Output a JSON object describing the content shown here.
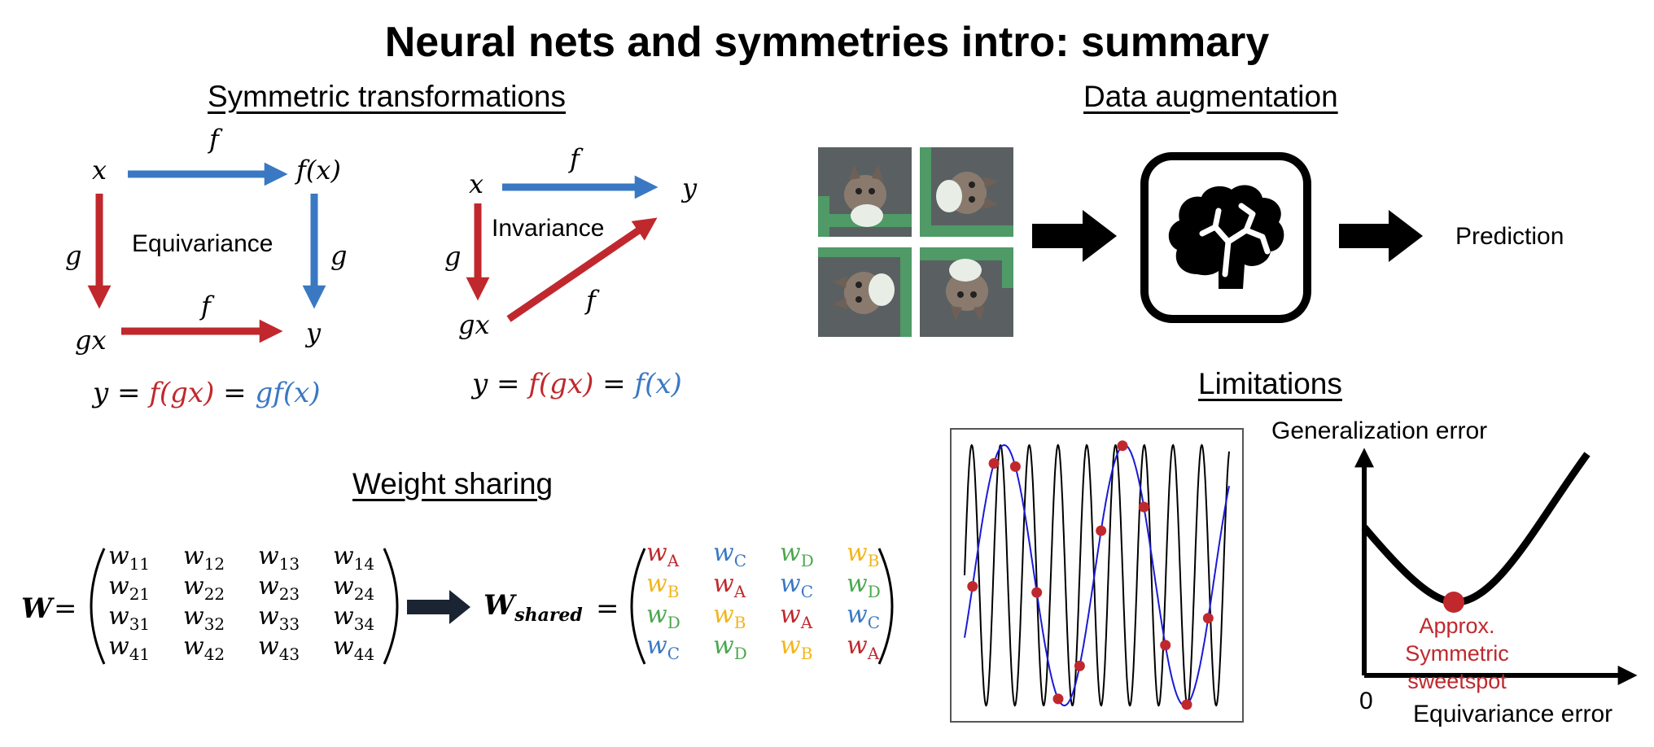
{
  "title": "Neural nets and symmetries intro: summary",
  "colors": {
    "red": "#c0282d",
    "blue": "#3a78c3",
    "yellow": "#f2b61b",
    "green": "#4aa84e",
    "black": "#000000",
    "dot": "#c0282d",
    "sine_fast": "#000000",
    "sine_slow": "#1a1ad6"
  },
  "symmetric": {
    "heading": "Symmetric transformations",
    "equivariance": {
      "x": "x",
      "fx": "f(x)",
      "gx": "gx",
      "y": "y",
      "f_top": "f",
      "f_bottom": "f",
      "g_left": "g",
      "g_right": "g",
      "label": "Equivariance",
      "eq": {
        "lhs": "y = ",
        "mid": "f(gx)",
        "eq2": " = ",
        "rhs": "gf(x)"
      }
    },
    "invariance": {
      "x": "x",
      "y": "y",
      "gx": "gx",
      "f_top": "f",
      "f_diag": "f",
      "g_left": "g",
      "label": "Invariance",
      "eq": {
        "lhs": "y = ",
        "mid": "f(gx)",
        "eq2": " = ",
        "rhs": "f(x)"
      }
    }
  },
  "augmentation": {
    "heading": "Data augmentation",
    "prediction": "Prediction",
    "brain_icon": "brain-icon",
    "image_subject": "kitten"
  },
  "weight_sharing": {
    "heading": "Weight sharing",
    "W_label": "W",
    "W_shared_label": "W",
    "W_shared_sub": "shared",
    "equals": "=",
    "W": [
      [
        [
          "w",
          "11"
        ],
        [
          "w",
          "12"
        ],
        [
          "w",
          "13"
        ],
        [
          "w",
          "14"
        ]
      ],
      [
        [
          "w",
          "21"
        ],
        [
          "w",
          "22"
        ],
        [
          "w",
          "23"
        ],
        [
          "w",
          "24"
        ]
      ],
      [
        [
          "w",
          "31"
        ],
        [
          "w",
          "32"
        ],
        [
          "w",
          "33"
        ],
        [
          "w",
          "34"
        ]
      ],
      [
        [
          "w",
          "41"
        ],
        [
          "w",
          "42"
        ],
        [
          "w",
          "43"
        ],
        [
          "w",
          "44"
        ]
      ]
    ],
    "W_shared": [
      [
        [
          "w",
          "A",
          "red"
        ],
        [
          "w",
          "C",
          "blue"
        ],
        [
          "w",
          "D",
          "green"
        ],
        [
          "w",
          "B",
          "yellow"
        ]
      ],
      [
        [
          "w",
          "B",
          "yellow"
        ],
        [
          "w",
          "A",
          "red"
        ],
        [
          "w",
          "C",
          "blue"
        ],
        [
          "w",
          "D",
          "green"
        ]
      ],
      [
        [
          "w",
          "D",
          "green"
        ],
        [
          "w",
          "B",
          "yellow"
        ],
        [
          "w",
          "A",
          "red"
        ],
        [
          "w",
          "C",
          "blue"
        ]
      ],
      [
        [
          "w",
          "C",
          "blue"
        ],
        [
          "w",
          "D",
          "green"
        ],
        [
          "w",
          "B",
          "yellow"
        ],
        [
          "w",
          "A",
          "red"
        ]
      ]
    ]
  },
  "limitations": {
    "heading": "Limitations",
    "y_axis": "Generalization error",
    "x_axis": "Equivariance error",
    "origin": "0",
    "sweetspot_line1": "Approx. Symmetric",
    "sweetspot_line2": "sweetspot"
  }
}
